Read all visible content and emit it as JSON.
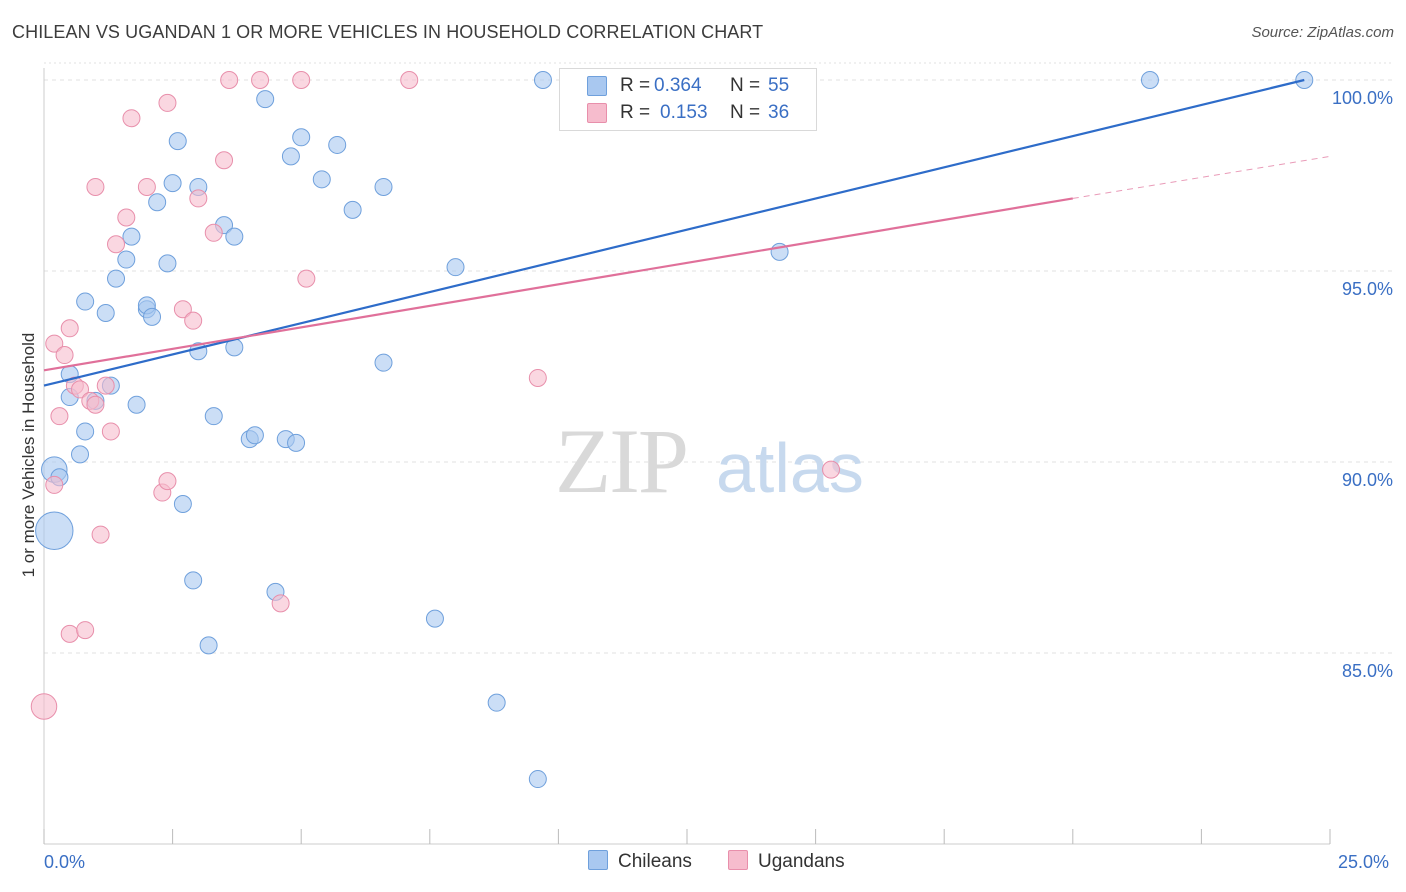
{
  "header": {
    "title": "CHILEAN VS UGANDAN 1 OR MORE VEHICLES IN HOUSEHOLD CORRELATION CHART",
    "source_label": "Source: ZipAtlas.com"
  },
  "watermark": {
    "zip": "ZIP",
    "atlas": "atlas"
  },
  "legend_top": {
    "rows": [
      {
        "r_label": "R =",
        "r_value": "0.364",
        "n_label": "N =",
        "n_value": "55"
      },
      {
        "r_label": "R =",
        "r_value": "0.153",
        "n_label": "N =",
        "n_value": "36"
      }
    ]
  },
  "legend_bottom": {
    "items": [
      "Chileans",
      "Ugandans"
    ]
  },
  "axes": {
    "y_title": "1 or more Vehicles in Household",
    "x_min_label": "0.0%",
    "x_max_label": "25.0%"
  },
  "colors": {
    "blue_fill": "#a9c8f0",
    "blue_stroke": "#6fa0dc",
    "blue_line": "#2e6cc9",
    "pink_fill": "#f6bccd",
    "pink_stroke": "#e88fab",
    "pink_line": "#e0709a",
    "tick_text": "#3a6fc4",
    "grid": "#e2e2e2"
  },
  "chart_data": {
    "type": "scatter",
    "title": "CHILEAN VS UGANDAN 1 OR MORE VEHICLES IN HOUSEHOLD CORRELATION CHART",
    "xlabel": "",
    "ylabel": "1 or more Vehicles in Household",
    "xlim": [
      0,
      25
    ],
    "ylim": [
      80.5,
      100.5
    ],
    "x_ticks": [
      0,
      2.5,
      5,
      7.5,
      10,
      12.5,
      15,
      17.5,
      20,
      22.5,
      25
    ],
    "x_tick_labels": {
      "0": "0.0%",
      "25": "25.0%"
    },
    "y_ticks": [
      85,
      90,
      95,
      100
    ],
    "y_tick_labels": [
      "85.0%",
      "90.0%",
      "95.0%",
      "100.0%"
    ],
    "grid": true,
    "legend_position": "top-center",
    "series": [
      {
        "name": "Chileans",
        "points": [
          [
            0.2,
            88.2,
            2.2
          ],
          [
            0.2,
            89.8,
            1.5
          ],
          [
            0.3,
            89.6,
            1
          ],
          [
            0.5,
            92.3,
            1
          ],
          [
            0.5,
            91.7,
            1
          ],
          [
            0.7,
            90.2,
            1
          ],
          [
            0.8,
            90.8,
            1
          ],
          [
            0.8,
            94.2,
            1
          ],
          [
            1.0,
            91.6,
            1
          ],
          [
            1.2,
            93.9,
            1
          ],
          [
            1.3,
            92.0,
            1
          ],
          [
            1.4,
            94.8,
            1
          ],
          [
            1.6,
            95.3,
            1
          ],
          [
            1.7,
            95.9,
            1
          ],
          [
            1.8,
            91.5,
            1
          ],
          [
            2.0,
            94.0,
            1
          ],
          [
            2.0,
            94.1,
            1
          ],
          [
            2.1,
            93.8,
            1
          ],
          [
            2.2,
            96.8,
            1
          ],
          [
            2.4,
            95.2,
            1
          ],
          [
            2.5,
            97.3,
            1
          ],
          [
            2.6,
            98.4,
            1
          ],
          [
            2.7,
            88.9,
            1
          ],
          [
            2.9,
            86.9,
            1
          ],
          [
            3.0,
            92.9,
            1
          ],
          [
            3.0,
            97.2,
            1
          ],
          [
            3.2,
            85.2,
            1
          ],
          [
            3.3,
            91.2,
            1
          ],
          [
            3.5,
            96.2,
            1
          ],
          [
            3.7,
            93.0,
            1
          ],
          [
            3.7,
            95.9,
            1
          ],
          [
            4.0,
            90.6,
            1
          ],
          [
            4.1,
            90.7,
            1
          ],
          [
            4.3,
            99.5,
            1
          ],
          [
            4.5,
            86.6,
            1
          ],
          [
            4.7,
            90.6,
            1
          ],
          [
            4.8,
            98.0,
            1
          ],
          [
            4.9,
            90.5,
            1
          ],
          [
            5.0,
            98.5,
            1
          ],
          [
            5.4,
            97.4,
            1
          ],
          [
            5.7,
            98.3,
            1
          ],
          [
            6.0,
            96.6,
            1
          ],
          [
            6.6,
            92.6,
            1
          ],
          [
            6.6,
            97.2,
            1
          ],
          [
            7.6,
            85.9,
            1
          ],
          [
            8.0,
            95.1,
            1
          ],
          [
            8.8,
            83.7,
            1
          ],
          [
            9.6,
            81.7,
            1
          ],
          [
            9.7,
            100.0,
            1
          ],
          [
            13.3,
            100.0,
            1
          ],
          [
            14.2,
            100.0,
            1
          ],
          [
            14.3,
            95.5,
            1
          ],
          [
            21.5,
            100.0,
            1
          ],
          [
            24.5,
            100.0,
            1
          ],
          [
            14.2,
            100.0,
            1
          ]
        ],
        "trend": {
          "x": [
            0,
            24.5
          ],
          "y": [
            92.0,
            100.0
          ]
        }
      },
      {
        "name": "Ugandans",
        "points": [
          [
            0.0,
            83.6,
            1.5
          ],
          [
            0.2,
            89.4,
            1
          ],
          [
            0.2,
            93.1,
            1
          ],
          [
            0.3,
            91.2,
            1
          ],
          [
            0.4,
            92.8,
            1
          ],
          [
            0.5,
            85.5,
            1
          ],
          [
            0.5,
            93.5,
            1
          ],
          [
            0.6,
            92.0,
            1
          ],
          [
            0.7,
            91.9,
            1
          ],
          [
            0.8,
            85.6,
            1
          ],
          [
            0.9,
            91.6,
            1
          ],
          [
            1.0,
            91.5,
            1
          ],
          [
            1.0,
            97.2,
            1
          ],
          [
            1.1,
            88.1,
            1
          ],
          [
            1.2,
            92.0,
            1
          ],
          [
            1.3,
            90.8,
            1
          ],
          [
            1.4,
            95.7,
            1
          ],
          [
            1.6,
            96.4,
            1
          ],
          [
            1.7,
            99.0,
            1
          ],
          [
            2.0,
            97.2,
            1
          ],
          [
            2.3,
            89.2,
            1
          ],
          [
            2.4,
            99.4,
            1
          ],
          [
            2.4,
            89.5,
            1
          ],
          [
            2.7,
            94.0,
            1
          ],
          [
            2.9,
            93.7,
            1
          ],
          [
            3.0,
            96.9,
            1
          ],
          [
            3.3,
            96.0,
            1
          ],
          [
            3.5,
            97.9,
            1
          ],
          [
            3.6,
            100.0,
            1
          ],
          [
            4.2,
            100.0,
            1
          ],
          [
            4.6,
            86.3,
            1
          ],
          [
            5.0,
            100.0,
            1
          ],
          [
            5.1,
            94.8,
            1
          ],
          [
            7.1,
            100.0,
            1
          ],
          [
            9.6,
            92.2,
            1
          ],
          [
            15.3,
            89.8,
            1
          ]
        ],
        "trend": {
          "x": [
            0,
            20
          ],
          "y": [
            92.4,
            96.9
          ]
        },
        "trend_extension": {
          "x": [
            20,
            25
          ],
          "y": [
            96.9,
            98.0
          ]
        }
      }
    ]
  }
}
